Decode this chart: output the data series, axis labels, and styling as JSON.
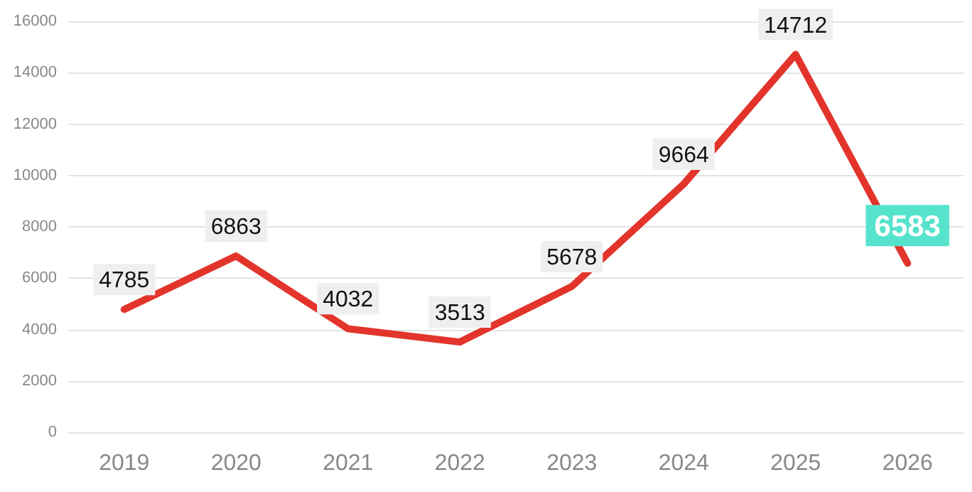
{
  "chart_data": {
    "type": "line",
    "categories": [
      "2019",
      "2020",
      "2021",
      "2022",
      "2023",
      "2024",
      "2025",
      "2026"
    ],
    "series": [
      {
        "color": "#e3342b",
        "values": [
          4785,
          6863,
          4032,
          3513,
          5678,
          9664,
          14712,
          6583
        ]
      }
    ],
    "ylim": [
      0,
      16000
    ],
    "yticks": [
      0,
      2000,
      4000,
      6000,
      8000,
      10000,
      12000,
      14000,
      16000
    ],
    "grid": "y",
    "marker": "none",
    "line_style": "solid",
    "data_labels": true
  }
}
